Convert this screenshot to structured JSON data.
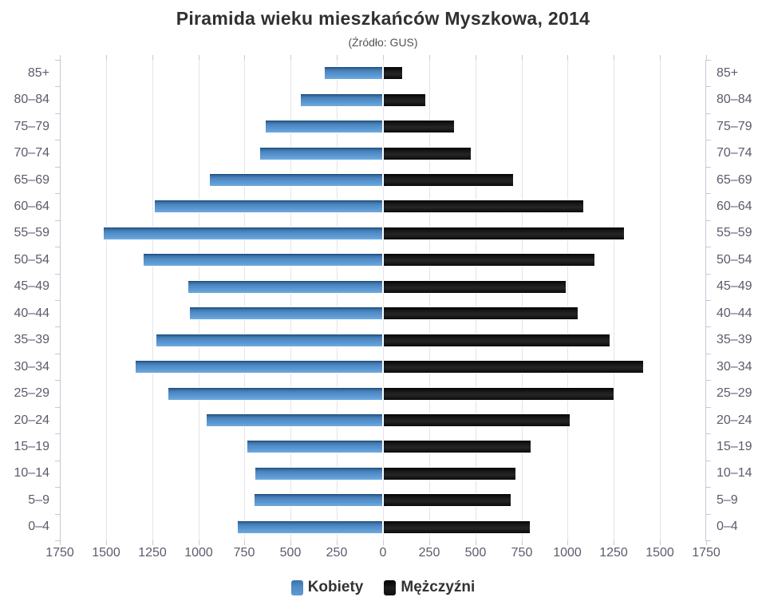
{
  "chart_data": {
    "type": "bar",
    "variant": "population-pyramid",
    "title": "Piramida wieku mieszkańców Myszkowa, 2014",
    "subtitle": "(Źródło: GUS)",
    "categories": [
      "85+",
      "80–84",
      "75–79",
      "70–74",
      "65–69",
      "60–64",
      "55–59",
      "50–54",
      "45–49",
      "40–44",
      "35–39",
      "30–34",
      "25–29",
      "20–24",
      "15–19",
      "10–14",
      "5–9",
      "0–4"
    ],
    "series": [
      {
        "name": "Kobiety",
        "side": "left",
        "color": "#4f8cc6",
        "values": [
          320,
          450,
          640,
          670,
          940,
          1240,
          1515,
          1300,
          1060,
          1050,
          1230,
          1345,
          1165,
          960,
          740,
          695,
          700,
          790
        ]
      },
      {
        "name": "Mężczyźni",
        "side": "right",
        "color": "#1a1a1a",
        "values": [
          110,
          235,
          390,
          480,
          710,
          1090,
          1310,
          1150,
          995,
          1060,
          1230,
          1415,
          1255,
          1015,
          805,
          720,
          695,
          800
        ]
      }
    ],
    "axis_tick_labels": [
      "1750",
      "1500",
      "1250",
      "1000",
      "750",
      "500",
      "250",
      "0",
      "250",
      "500",
      "750",
      "1000",
      "1250",
      "1500",
      "1750"
    ],
    "value_axis_max": 1750,
    "grid": true,
    "legend_position": "bottom"
  }
}
